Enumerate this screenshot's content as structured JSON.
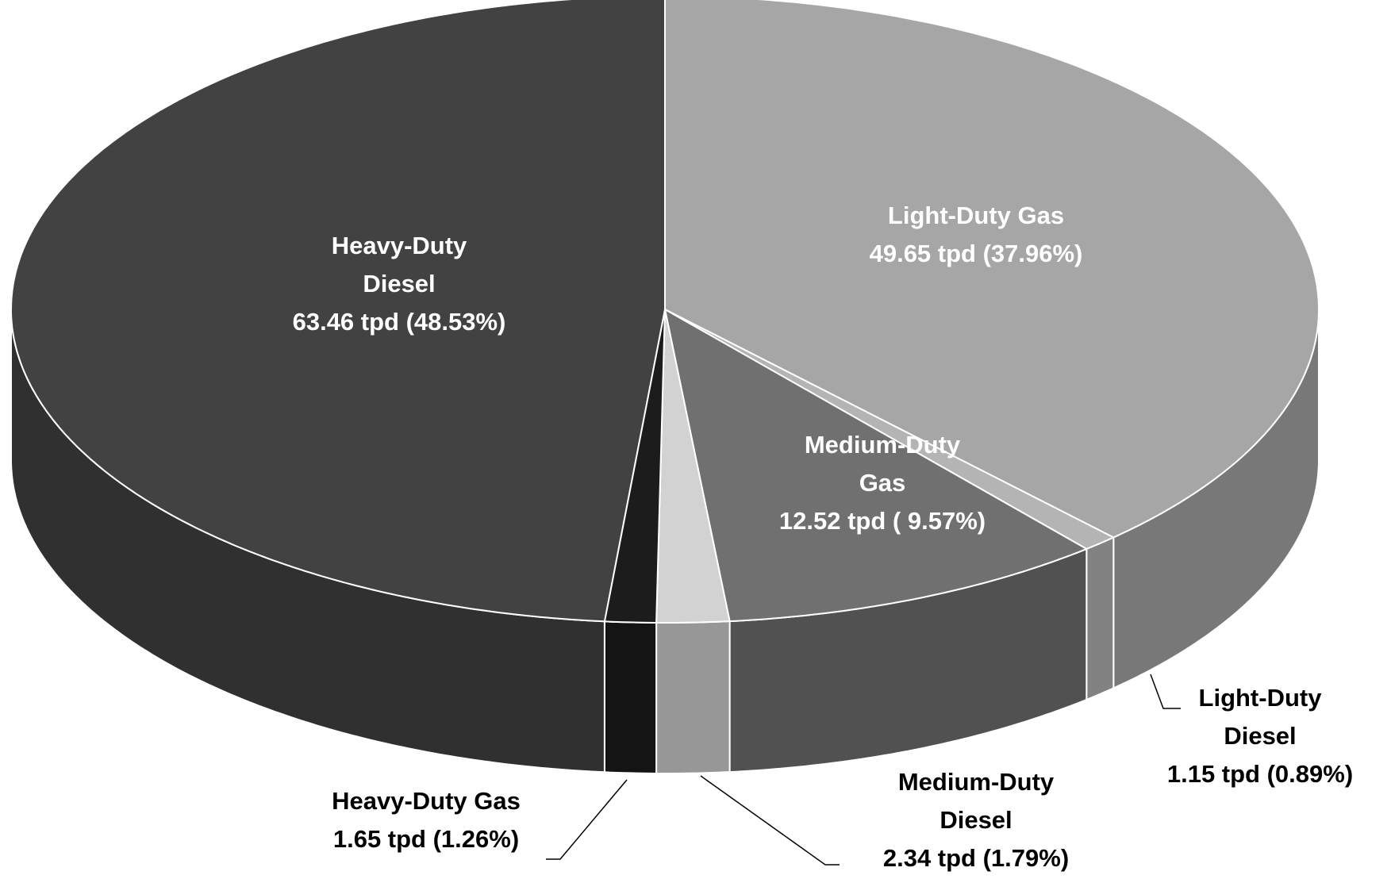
{
  "chart_data": {
    "type": "pie3d",
    "categories": [
      "Light-Duty Gas",
      "Light-Duty Diesel",
      "Medium-Duty Gas",
      "Medium-Duty Diesel",
      "Heavy-Duty Gas",
      "Heavy-Duty Diesel"
    ],
    "values": [
      49.65,
      1.15,
      12.52,
      2.34,
      1.65,
      63.46
    ],
    "value_labels": [
      "49.65 tpd (37.96%)",
      "1.15 tpd (0.89%)",
      "12.52 tpd ( 9.57%)",
      "2.34 tpd (1.79%)",
      "1.65 tpd (1.26%)",
      "63.46 tpd (48.53%)"
    ],
    "colors": [
      "#a6a6a6",
      "#b4b4b4",
      "#707070",
      "#d2d2d2",
      "#1c1c1c",
      "#424242"
    ]
  }
}
